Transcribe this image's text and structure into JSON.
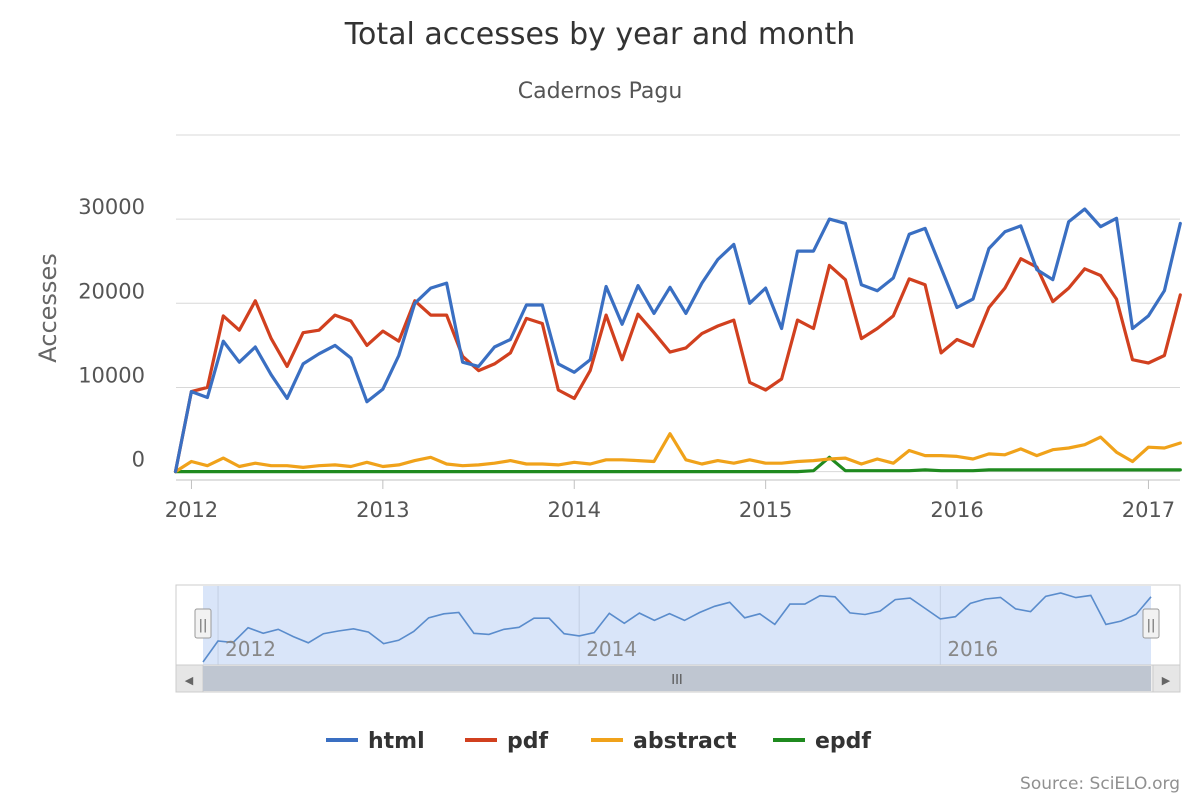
{
  "chart_data": {
    "type": "line",
    "title": "Total accesses by year and month",
    "subtitle": "Cadernos Pagu",
    "ylabel": "Accesses",
    "xlabel": "",
    "ylim": [
      -1000,
      40000
    ],
    "yticks": [
      0,
      10000,
      20000,
      30000
    ],
    "xticks": [
      "2012",
      "2013",
      "2014",
      "2015",
      "2016",
      "2017"
    ],
    "x": [
      "2011-12",
      "2012-01",
      "2012-02",
      "2012-03",
      "2012-04",
      "2012-05",
      "2012-06",
      "2012-07",
      "2012-08",
      "2012-09",
      "2012-10",
      "2012-11",
      "2012-12",
      "2013-01",
      "2013-02",
      "2013-03",
      "2013-04",
      "2013-05",
      "2013-06",
      "2013-07",
      "2013-08",
      "2013-09",
      "2013-10",
      "2013-11",
      "2013-12",
      "2014-01",
      "2014-02",
      "2014-03",
      "2014-04",
      "2014-05",
      "2014-06",
      "2014-07",
      "2014-08",
      "2014-09",
      "2014-10",
      "2014-11",
      "2014-12",
      "2015-01",
      "2015-02",
      "2015-03",
      "2015-04",
      "2015-05",
      "2015-06",
      "2015-07",
      "2015-08",
      "2015-09",
      "2015-10",
      "2015-11",
      "2015-12",
      "2016-01",
      "2016-02",
      "2016-03",
      "2016-04",
      "2016-05",
      "2016-06",
      "2016-07",
      "2016-08",
      "2016-09",
      "2016-10",
      "2016-11",
      "2016-12",
      "2017-01",
      "2017-02",
      "2017-03"
    ],
    "series": [
      {
        "name": "html",
        "color": "#3a6fc2",
        "values": [
          0,
          9500,
          8800,
          15500,
          13000,
          14800,
          11500,
          8700,
          12800,
          14000,
          15000,
          13500,
          8300,
          9800,
          13800,
          20000,
          21800,
          22400,
          13000,
          12500,
          14800,
          15700,
          19800,
          19800,
          12800,
          11800,
          13300,
          22000,
          17500,
          22100,
          18800,
          21900,
          18800,
          22400,
          25200,
          27000,
          20000,
          21800,
          17000,
          26200,
          26200,
          30000,
          29500,
          22200,
          21500,
          23000,
          28200,
          28900,
          24200,
          19500,
          20500,
          26500,
          28500,
          29200,
          24000,
          22800,
          29700,
          31200,
          29100,
          30100,
          17000,
          18500,
          21500,
          29500
        ]
      },
      {
        "name": "pdf",
        "color": "#d1401f",
        "values": [
          0,
          9500,
          10000,
          18500,
          16800,
          20300,
          15800,
          12500,
          16500,
          16800,
          18600,
          17900,
          15000,
          16700,
          15500,
          20300,
          18600,
          18600,
          13700,
          12000,
          12800,
          14100,
          18200,
          17600,
          9700,
          8700,
          12000,
          18600,
          13300,
          18700,
          16500,
          14200,
          14700,
          16400,
          17300,
          18000,
          10600,
          9700,
          11000,
          18000,
          17000,
          24500,
          22800,
          15800,
          17000,
          18500,
          22900,
          22200,
          14100,
          15700,
          14900,
          19500,
          21800,
          25300,
          24300,
          20200,
          21800,
          24100,
          23300,
          20500,
          13300,
          12900,
          13800,
          21000
        ]
      },
      {
        "name": "abstract",
        "color": "#f0a21a",
        "values": [
          0,
          1200,
          700,
          1600,
          600,
          1000,
          700,
          700,
          500,
          700,
          800,
          600,
          1100,
          600,
          800,
          1300,
          1700,
          900,
          700,
          800,
          1000,
          1300,
          900,
          900,
          800,
          1100,
          900,
          1400,
          1400,
          1300,
          1200,
          4500,
          1400,
          900,
          1300,
          1000,
          1400,
          1000,
          1000,
          1200,
          1300,
          1500,
          1600,
          900,
          1500,
          1000,
          2500,
          1900,
          1900,
          1800,
          1500,
          2100,
          2000,
          2700,
          1900,
          2600,
          2800,
          3200,
          4100,
          2300,
          1200,
          2900,
          2800,
          3400
        ]
      },
      {
        "name": "epdf",
        "color": "#1f8a1f",
        "values": [
          0,
          0,
          0,
          0,
          0,
          0,
          0,
          0,
          0,
          0,
          0,
          0,
          0,
          0,
          0,
          0,
          0,
          0,
          0,
          0,
          0,
          0,
          0,
          0,
          0,
          0,
          0,
          0,
          0,
          0,
          0,
          0,
          0,
          0,
          0,
          0,
          0,
          0,
          0,
          0,
          100,
          1700,
          100,
          100,
          100,
          100,
          100,
          200,
          100,
          100,
          100,
          200,
          200,
          200,
          200,
          200,
          200,
          200,
          200,
          200,
          200,
          200,
          200,
          200
        ]
      }
    ],
    "legend_position": "bottom-center",
    "grid": true
  },
  "navigator": {
    "labels": [
      "2012",
      "2014",
      "2016"
    ],
    "scrollbar_grip": "III",
    "left_arrow": "◀",
    "right_arrow": "▶",
    "handle_grip": "||"
  },
  "credit": "Source: SciELO.org"
}
